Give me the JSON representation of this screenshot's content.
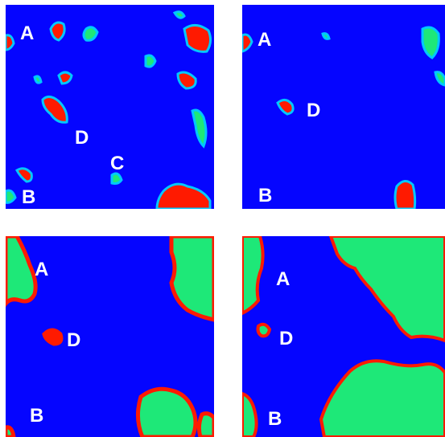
{
  "colors": {
    "background": "#0505ff",
    "edge": "#ff1a00",
    "interior": "#1ee878",
    "halo": "#00c8ff",
    "label": "#ffffff"
  },
  "panels": [
    {
      "labels": {
        "a": "A",
        "b": "B",
        "c": "C",
        "d": "D"
      }
    },
    {
      "labels": {
        "a": "A",
        "b": "B",
        "d": "D"
      }
    },
    {
      "labels": {
        "a": "A",
        "b": "B",
        "d": "D"
      }
    },
    {
      "labels": {
        "a": "A",
        "b": "B",
        "d": "D"
      }
    }
  ]
}
